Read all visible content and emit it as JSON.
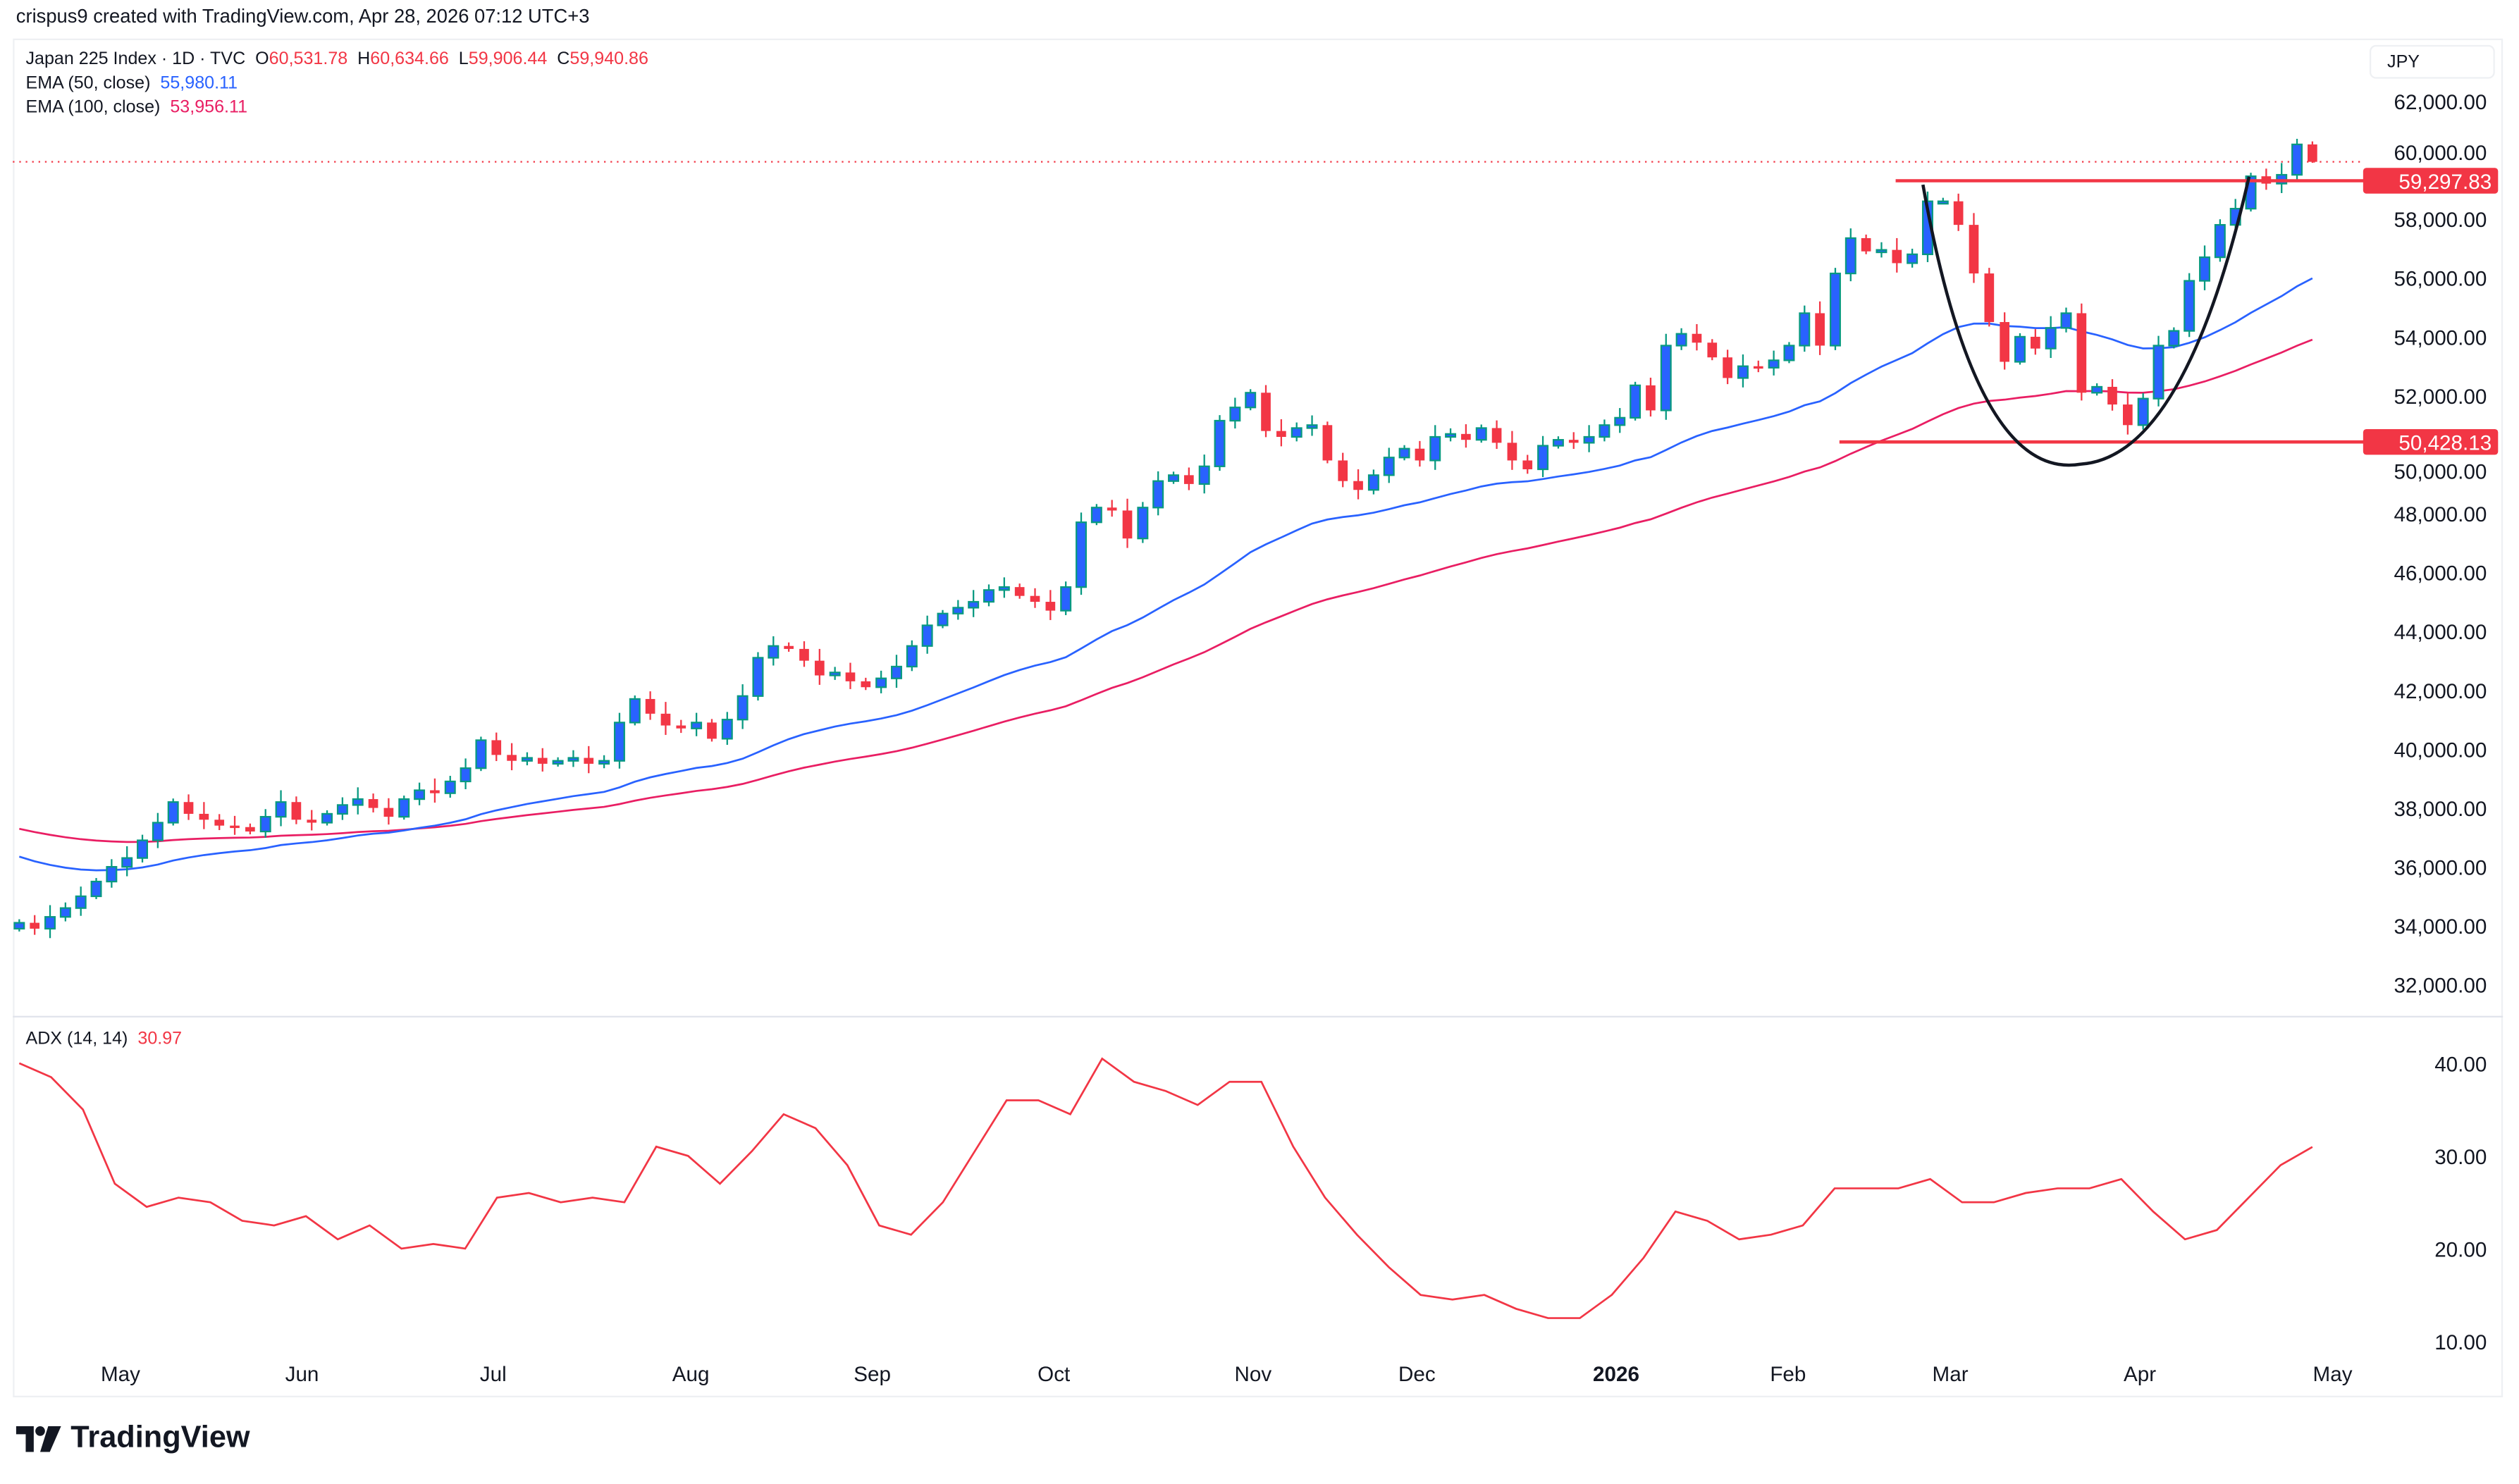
{
  "header": {
    "credit": "crispus9 created with TradingView.com, Apr 28, 2026 07:12 UTC+3"
  },
  "legend": {
    "symbol": "Japan 225 Index · 1D · TVC",
    "o_label": "O",
    "o": "60,531.78",
    "h_label": "H",
    "h": "60,634.66",
    "l_label": "L",
    "l": "59,906.44",
    "c_label": "C",
    "c": "59,940.86",
    "ema50_label": "EMA (50, close)",
    "ema50": "55,980.11",
    "ema100_label": "EMA (100, close)",
    "ema100": "53,956.11"
  },
  "currency": "JPY",
  "adx": {
    "label": "ADX (14, 14)",
    "value": "30.97"
  },
  "footer": {
    "logo_text": "TradingView"
  },
  "colors": {
    "up_fill": "#2962ff",
    "up_border": "#089981",
    "down": "#f23645",
    "ema50": "#2962ff",
    "ema100": "#e91e63",
    "adx": "#f23645",
    "level": "#f23645",
    "cup": "#131722"
  },
  "chart_data": {
    "type": "candlestick",
    "price_axis": {
      "ticks": [
        "62,000.00",
        "60,000.00",
        "58,000.00",
        "56,000.00",
        "54,000.00",
        "52,000.00",
        "50,000.00",
        "48,000.00",
        "46,000.00",
        "44,000.00",
        "42,000.00",
        "40,000.00",
        "38,000.00",
        "36,000.00",
        "34,000.00",
        "32,000.00"
      ],
      "ylim": [
        32000,
        62000
      ]
    },
    "adx_axis": {
      "ticks": [
        "40.00",
        "30.00",
        "20.00",
        "10.00"
      ],
      "ylim": [
        10,
        40
      ]
    },
    "x_axis": {
      "ticks": [
        "May",
        "Jun",
        "Jul",
        "Aug",
        "Sep",
        "Oct",
        "Nov",
        "Dec",
        "2026",
        "Feb",
        "Mar",
        "Apr",
        "May"
      ]
    },
    "levels": [
      {
        "value": 59297.83,
        "label": "59,297.83"
      },
      {
        "value": 50428.13,
        "label": "50,428.13"
      }
    ],
    "last_price": 59940.86,
    "last_bar": {
      "o": 60531.78,
      "h": 60634.66,
      "l": 59906.44,
      "c": 59940.86
    },
    "ema50_start": 36500,
    "ema100_start": 37400,
    "closes": [
      34100,
      33900,
      34300,
      34600,
      35000,
      35500,
      36000,
      36300,
      36900,
      37500,
      38200,
      37800,
      37600,
      37400,
      37350,
      37200,
      37700,
      38200,
      37600,
      37500,
      37800,
      38100,
      38300,
      38000,
      37700,
      38300,
      38600,
      38500,
      38900,
      39350,
      40300,
      39800,
      39600,
      39700,
      39500,
      39600,
      39700,
      39500,
      39600,
      40900,
      41700,
      41200,
      40800,
      40700,
      40900,
      40350,
      41000,
      41800,
      43100,
      43500,
      43400,
      43000,
      42500,
      42600,
      42300,
      42100,
      42400,
      42800,
      43500,
      44200,
      44600,
      44800,
      45000,
      45400,
      45500,
      45200,
      45000,
      44700,
      45500,
      47700,
      48200,
      48100,
      47150,
      48200,
      49100,
      49300,
      49000,
      49600,
      51150,
      51600,
      52100,
      50800,
      50600,
      50900,
      51000,
      49800,
      49100,
      48800,
      49300,
      49900,
      50200,
      49800,
      50600,
      50700,
      50500,
      50900,
      50400,
      49800,
      49500,
      50300,
      50500,
      50400,
      50600,
      51000,
      51250,
      52350,
      51500,
      53700,
      54100,
      53800,
      53300,
      52600,
      53000,
      52950,
      53200,
      53700,
      54800,
      53700,
      56150,
      57350,
      56900,
      56950,
      56500,
      56800,
      58600,
      58600,
      57800,
      56150,
      54500,
      53150,
      54000,
      53600,
      54300,
      54800,
      52100,
      52300,
      51700,
      51000,
      51900,
      53700,
      54200,
      55900,
      56700,
      57800,
      58350,
      59450,
      59200,
      59500,
      60531.78,
      59940.86
    ],
    "adx_values": [
      40,
      38.5,
      35,
      27,
      24.5,
      25.5,
      25,
      23,
      22.5,
      23.5,
      21,
      22.5,
      20,
      20.5,
      20,
      25.5,
      26,
      25,
      25.5,
      25,
      31,
      30,
      27,
      30.5,
      34.5,
      33,
      29,
      22.5,
      21.5,
      25,
      30.5,
      36,
      36,
      34.5,
      40.5,
      38,
      37,
      35.5,
      38,
      38,
      31,
      25.5,
      21.5,
      18,
      15,
      14.5,
      15,
      13.5,
      12.5,
      12.5,
      15,
      19,
      24,
      23,
      21,
      21.5,
      22.5,
      26.5,
      26.5,
      26.5,
      27.5,
      25,
      25,
      26,
      26.5,
      26.5,
      27.5,
      24,
      21,
      22,
      25.5,
      29,
      30.97
    ]
  }
}
